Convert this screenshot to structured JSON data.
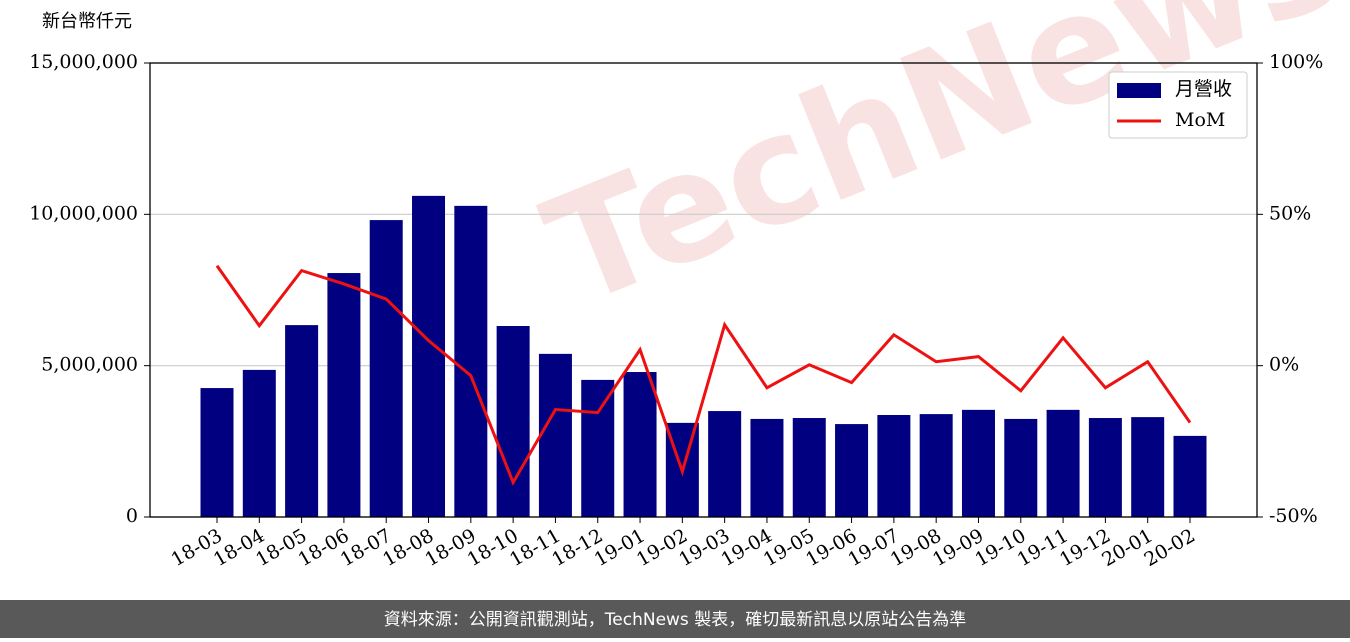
{
  "chart_data": {
    "type": "bar-line",
    "y_axis_label": "新台幣仟元",
    "watermark": "TechNews",
    "source": "資料來源：公開資訊觀測站，TechNews 製表，確切最新訊息以原站公告為準",
    "categories": [
      "18-03",
      "18-04",
      "18-05",
      "18-06",
      "18-07",
      "18-08",
      "18-09",
      "18-10",
      "18-11",
      "18-12",
      "19-01",
      "19-02",
      "19-03",
      "19-04",
      "19-05",
      "19-06",
      "19-07",
      "19-08",
      "19-09",
      "19-10",
      "19-11",
      "19-12",
      "20-01",
      "20-02"
    ],
    "series": [
      {
        "name": "月營收",
        "color": "#000080",
        "type": "bar",
        "values": [
          4260000,
          4860000,
          6340000,
          8060000,
          9810000,
          10610000,
          10280000,
          6310000,
          5390000,
          4530000,
          4790000,
          3110000,
          3500000,
          3240000,
          3270000,
          3070000,
          3370000,
          3400000,
          3540000,
          3240000,
          3540000,
          3270000,
          3300000,
          2680000
        ]
      },
      {
        "name": "MoM",
        "color": "#ee1111",
        "type": "line",
        "axis": "y2",
        "values": [
          33,
          13.2,
          31.4,
          27,
          22,
          8.3,
          -3.3,
          -38.6,
          -14.5,
          -15.5,
          5.3,
          -35,
          13.5,
          -7.3,
          0.3,
          -5.6,
          10.2,
          1.3,
          3,
          -8.3,
          9.2,
          -7.3,
          1.3,
          -18.8
        ]
      }
    ],
    "ylim": [
      0,
      15000000
    ],
    "yticks": [
      0,
      {
        "value": 5000000,
        "label": "5,000,000"
      },
      {
        "value": 10000000,
        "label": "10,000,000"
      },
      {
        "value": 15000000,
        "label": "15,000,000"
      }
    ],
    "y2lim": [
      -50,
      100
    ],
    "y2ticks": [
      {
        "value": -50,
        "label": "-50%"
      },
      {
        "value": 0,
        "label": "0%"
      },
      {
        "value": 50,
        "label": "50%"
      },
      {
        "value": 100,
        "label": "100%"
      }
    ],
    "grid": true,
    "legend": "upper right"
  }
}
